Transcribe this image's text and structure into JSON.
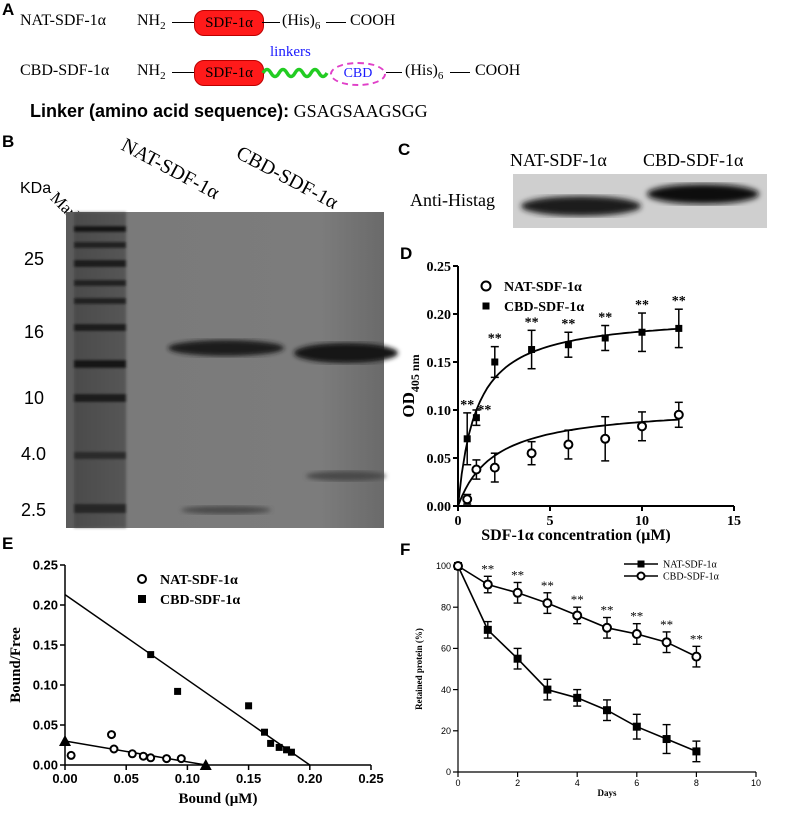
{
  "panels": {
    "a": "A",
    "b": "B",
    "c": "C",
    "d": "D",
    "e": "E",
    "f": "F"
  },
  "constructs": {
    "nat_label": "NAT-SDF-1α",
    "cbd_label": "CBD-SDF-1α",
    "nh2": "NH",
    "nh2_sub": "2",
    "sdf_box": "SDF-1α",
    "his": "(His)",
    "his_sub": "6",
    "cooh": "COOH",
    "linkers": "linkers",
    "cbd_box": "CBD",
    "linker_title": "Linker (amino acid sequence):",
    "linker_seq": "GSAGSAAGSGG",
    "colors": {
      "sdf": "#ff1a1a",
      "linker": "#22cc22",
      "cbd": "#e040c8",
      "linker_text": "#1a1aff"
    }
  },
  "gel_b": {
    "kda": "KDa",
    "marker": "Marker",
    "lane_nat": "NAT-SDF-1α",
    "lane_cbd": "CBD-SDF-1α",
    "ticks": [
      "25",
      "16",
      "10",
      "4.0",
      "2.5"
    ]
  },
  "blot_c": {
    "lane_nat": "NAT-SDF-1α",
    "lane_cbd": "CBD-SDF-1α",
    "row_label": "Anti-Histag"
  },
  "chart_data": [
    {
      "id": "D",
      "type": "scatter",
      "xlabel": "SDF-1α concentration (μM)",
      "ylabel": "OD",
      "ylabel_sub": "405 nm",
      "xlim": [
        0,
        15
      ],
      "ylim": [
        0,
        0.25
      ],
      "xticks": [
        "0",
        "5",
        "10",
        "15"
      ],
      "yticks": [
        "0.00",
        "0.05",
        "0.10",
        "0.15",
        "0.20",
        "0.25"
      ],
      "legend_position": "top-left",
      "series": [
        {
          "name": "NAT-SDF-1α",
          "marker": "open-circle",
          "x": [
            0.5,
            1,
            2,
            4,
            6,
            8,
            10,
            12
          ],
          "y": [
            0.007,
            0.038,
            0.04,
            0.055,
            0.064,
            0.07,
            0.083,
            0.095
          ],
          "err": [
            0.005,
            0.01,
            0.015,
            0.012,
            0.015,
            0.023,
            0.015,
            0.013
          ]
        },
        {
          "name": "CBD-SDF-1α",
          "marker": "filled-square",
          "x": [
            0.5,
            1,
            2,
            4,
            6,
            8,
            10,
            12
          ],
          "y": [
            0.07,
            0.092,
            0.15,
            0.163,
            0.168,
            0.175,
            0.181,
            0.185
          ],
          "err": [
            0.027,
            0.008,
            0.016,
            0.02,
            0.013,
            0.013,
            0.02,
            0.02
          ]
        }
      ],
      "annotations": [
        "**",
        "**",
        "**",
        "**",
        "**",
        "**",
        "**",
        "**"
      ]
    },
    {
      "id": "E",
      "type": "scatter",
      "xlabel": "Bound (μM)",
      "ylabel": "Bound/Free",
      "xlim": [
        0,
        0.25
      ],
      "ylim": [
        0,
        0.25
      ],
      "xticks": [
        "0.00",
        "0.05",
        "0.10",
        "0.15",
        "0.20",
        "0.25"
      ],
      "yticks": [
        "0.00",
        "0.05",
        "0.10",
        "0.15",
        "0.20",
        "0.25"
      ],
      "legend_position": "top-center",
      "series": [
        {
          "name": "NAT-SDF-1α",
          "marker": "open-circle",
          "x": [
            0.005,
            0.038,
            0.04,
            0.055,
            0.064,
            0.07,
            0.083,
            0.095
          ],
          "y": [
            0.012,
            0.038,
            0.02,
            0.014,
            0.011,
            0.009,
            0.008,
            0.008
          ]
        },
        {
          "name": "CBD-SDF-1α",
          "marker": "filled-square",
          "x": [
            0.07,
            0.092,
            0.15,
            0.163,
            0.168,
            0.175,
            0.181,
            0.185
          ],
          "y": [
            0.138,
            0.092,
            0.074,
            0.041,
            0.027,
            0.022,
            0.019,
            0.016
          ]
        }
      ],
      "fit_lines": [
        {
          "x": [
            0,
            0.2
          ],
          "y": [
            0.213,
            0
          ]
        },
        {
          "x": [
            0,
            0.115
          ],
          "y": [
            0.03,
            0
          ]
        }
      ],
      "triangles": {
        "x": [
          0,
          0.115
        ],
        "y": [
          0.03,
          0
        ]
      }
    },
    {
      "id": "F",
      "type": "line",
      "xlabel": "Days",
      "ylabel": "Retained protein (%)",
      "xlim": [
        0,
        10
      ],
      "ylim": [
        0,
        100
      ],
      "xticks": [
        "0",
        "2",
        "4",
        "6",
        "8",
        "10"
      ],
      "yticks": [
        "0",
        "20",
        "40",
        "60",
        "80",
        "100"
      ],
      "legend_position": "top-right",
      "series": [
        {
          "name": "NAT-SDF-1α",
          "marker": "filled-square",
          "x": [
            0,
            1,
            2,
            3,
            4,
            5,
            6,
            7,
            8
          ],
          "y": [
            100,
            69,
            55,
            40,
            36,
            30,
            22,
            16,
            10
          ],
          "err": [
            0,
            4,
            5,
            5,
            4,
            5,
            6,
            7,
            5
          ]
        },
        {
          "name": "CBD-SDF-1α",
          "marker": "open-circle",
          "x": [
            0,
            1,
            2,
            3,
            4,
            5,
            6,
            7,
            8
          ],
          "y": [
            100,
            91,
            87,
            82,
            76,
            70,
            67,
            63,
            56
          ],
          "err": [
            0,
            4,
            5,
            5,
            4,
            5,
            5,
            5,
            5
          ]
        }
      ],
      "annotations": [
        "**",
        "**",
        "**",
        "**",
        "**",
        "**",
        "**",
        "**"
      ]
    }
  ]
}
